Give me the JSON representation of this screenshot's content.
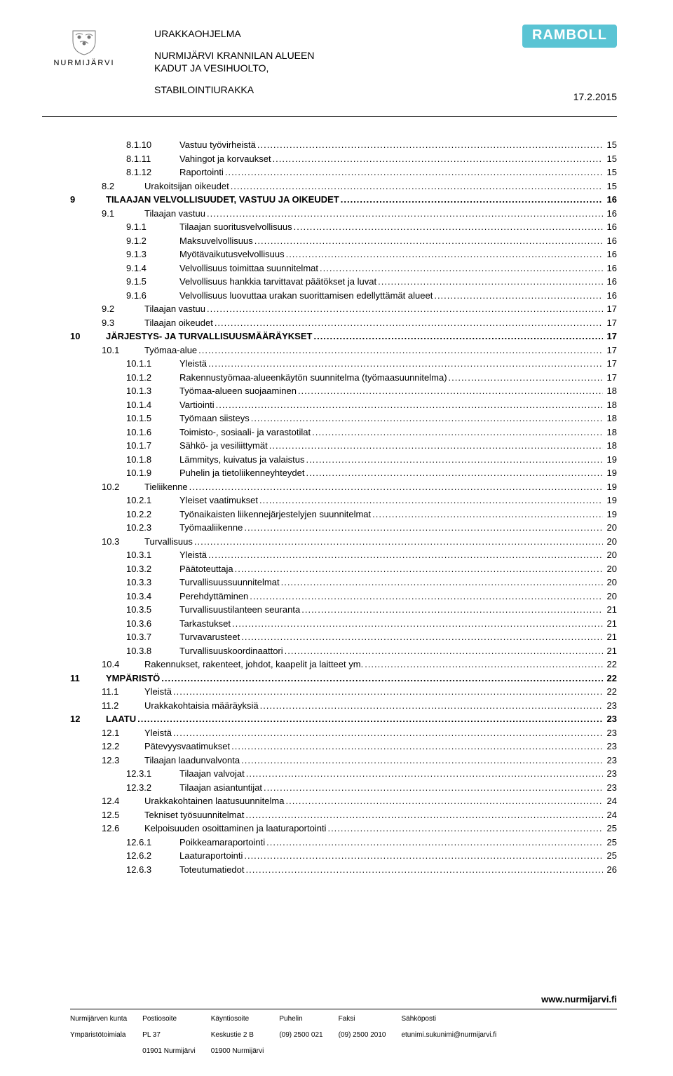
{
  "header": {
    "brand_left": "NURMIJÄRVI",
    "badge_right": "RAMBOLL",
    "title1": "URAKKAOHJELMA",
    "title2a": "NURMIJÄRVI KRANNILAN ALUEEN",
    "title2b": "KADUT JA VESIHUOLTO,",
    "title3": "STABILOINTIURAKKA",
    "date": "17.2.2015"
  },
  "toc": [
    {
      "lvl": 3,
      "num": "8.1.10",
      "title": "Vastuu työvirheistä",
      "page": "15"
    },
    {
      "lvl": 3,
      "num": "8.1.11",
      "title": "Vahingot ja korvaukset",
      "page": "15"
    },
    {
      "lvl": 3,
      "num": "8.1.12",
      "title": "Raportointi",
      "page": "15"
    },
    {
      "lvl": 2,
      "num": "8.2",
      "title": "Urakoitsijan oikeudet",
      "page": "15"
    },
    {
      "lvl": 1,
      "num": "9",
      "title": "TILAAJAN VELVOLLISUUDET, VASTUU JA OIKEUDET",
      "page": "16"
    },
    {
      "lvl": 2,
      "num": "9.1",
      "title": "Tilaajan vastuu",
      "page": "16"
    },
    {
      "lvl": 3,
      "num": "9.1.1",
      "title": "Tilaajan suoritusvelvollisuus",
      "page": "16"
    },
    {
      "lvl": 3,
      "num": "9.1.2",
      "title": "Maksuvelvollisuus",
      "page": "16"
    },
    {
      "lvl": 3,
      "num": "9.1.3",
      "title": "Myötävaikutusvelvollisuus",
      "page": "16"
    },
    {
      "lvl": 3,
      "num": "9.1.4",
      "title": "Velvollisuus toimittaa suunnitelmat",
      "page": "16"
    },
    {
      "lvl": 3,
      "num": "9.1.5",
      "title": "Velvollisuus hankkia tarvittavat päätökset ja luvat",
      "page": "16"
    },
    {
      "lvl": 3,
      "num": "9.1.6",
      "title": "Velvollisuus luovuttaa urakan suorittamisen edellyttämät alueet",
      "page": "16"
    },
    {
      "lvl": 2,
      "num": "9.2",
      "title": "Tilaajan vastuu",
      "page": "17"
    },
    {
      "lvl": 2,
      "num": "9.3",
      "title": "Tilaajan oikeudet",
      "page": "17"
    },
    {
      "lvl": 1,
      "num": "10",
      "title": "JÄRJESTYS- JA TURVALLISUUSMÄÄRÄYKSET",
      "page": "17"
    },
    {
      "lvl": 2,
      "num": "10.1",
      "title": "Työmaa-alue",
      "page": "17"
    },
    {
      "lvl": 3,
      "num": "10.1.1",
      "title": "Yleistä",
      "page": "17"
    },
    {
      "lvl": 3,
      "num": "10.1.2",
      "title": "Rakennustyömaa-alueenkäytön suunnitelma (työmaasuunnitelma)",
      "page": "17"
    },
    {
      "lvl": 3,
      "num": "10.1.3",
      "title": "Työmaa-alueen suojaaminen",
      "page": "18"
    },
    {
      "lvl": 3,
      "num": "10.1.4",
      "title": "Vartiointi",
      "page": "18"
    },
    {
      "lvl": 3,
      "num": "10.1.5",
      "title": "Työmaan siisteys",
      "page": "18"
    },
    {
      "lvl": 3,
      "num": "10.1.6",
      "title": "Toimisto-, sosiaali- ja varastotilat",
      "page": "18"
    },
    {
      "lvl": 3,
      "num": "10.1.7",
      "title": "Sähkö- ja vesiliittymät",
      "page": "18"
    },
    {
      "lvl": 3,
      "num": "10.1.8",
      "title": "Lämmitys, kuivatus ja valaistus",
      "page": "19"
    },
    {
      "lvl": 3,
      "num": "10.1.9",
      "title": "Puhelin ja tietoliikenneyhteydet",
      "page": "19"
    },
    {
      "lvl": 2,
      "num": "10.2",
      "title": "Tieliikenne",
      "page": "19"
    },
    {
      "lvl": 3,
      "num": "10.2.1",
      "title": "Yleiset vaatimukset",
      "page": "19"
    },
    {
      "lvl": 3,
      "num": "10.2.2",
      "title": "Työnaikaisten liikennejärjestelyjen suunnitelmat",
      "page": "19"
    },
    {
      "lvl": 3,
      "num": "10.2.3",
      "title": "Työmaaliikenne",
      "page": "20"
    },
    {
      "lvl": 2,
      "num": "10.3",
      "title": "Turvallisuus",
      "page": "20"
    },
    {
      "lvl": 3,
      "num": "10.3.1",
      "title": "Yleistä",
      "page": "20"
    },
    {
      "lvl": 3,
      "num": "10.3.2",
      "title": "Päätoteuttaja",
      "page": "20"
    },
    {
      "lvl": 3,
      "num": "10.3.3",
      "title": "Turvallisuussuunnitelmat",
      "page": "20"
    },
    {
      "lvl": 3,
      "num": "10.3.4",
      "title": "Perehdyttäminen",
      "page": "20"
    },
    {
      "lvl": 3,
      "num": "10.3.5",
      "title": "Turvallisuustilanteen seuranta",
      "page": "21"
    },
    {
      "lvl": 3,
      "num": "10.3.6",
      "title": "Tarkastukset",
      "page": "21"
    },
    {
      "lvl": 3,
      "num": "10.3.7",
      "title": "Turvavarusteet",
      "page": "21"
    },
    {
      "lvl": 3,
      "num": "10.3.8",
      "title": "Turvallisuuskoordinaattori",
      "page": "21"
    },
    {
      "lvl": 2,
      "num": "10.4",
      "title": "Rakennukset, rakenteet, johdot, kaapelit ja laitteet ym.",
      "page": "22"
    },
    {
      "lvl": 1,
      "num": "11",
      "title": "YMPÄRISTÖ",
      "page": "22"
    },
    {
      "lvl": 2,
      "num": "11.1",
      "title": "Yleistä",
      "page": "22"
    },
    {
      "lvl": 2,
      "num": "11.2",
      "title": "Urakkakohtaisia määräyksiä",
      "page": "23"
    },
    {
      "lvl": 1,
      "num": "12",
      "title": "LAATU",
      "page": "23"
    },
    {
      "lvl": 2,
      "num": "12.1",
      "title": "Yleistä",
      "page": "23"
    },
    {
      "lvl": 2,
      "num": "12.2",
      "title": "Pätevyysvaatimukset",
      "page": "23"
    },
    {
      "lvl": 2,
      "num": "12.3",
      "title": "Tilaajan laadunvalvonta",
      "page": "23"
    },
    {
      "lvl": 3,
      "num": "12.3.1",
      "title": "Tilaajan valvojat",
      "page": "23"
    },
    {
      "lvl": 3,
      "num": "12.3.2",
      "title": "Tilaajan asiantuntijat",
      "page": "23"
    },
    {
      "lvl": 2,
      "num": "12.4",
      "title": "Urakkakohtainen laatusuunnitelma",
      "page": "24"
    },
    {
      "lvl": 2,
      "num": "12.5",
      "title": "Tekniset työsuunnitelmat",
      "page": "24"
    },
    {
      "lvl": 2,
      "num": "12.6",
      "title": "Kelpoisuuden osoittaminen ja laaturaportointi",
      "page": "25"
    },
    {
      "lvl": 3,
      "num": "12.6.1",
      "title": "Poikkeamaraportointi",
      "page": "25"
    },
    {
      "lvl": 3,
      "num": "12.6.2",
      "title": "Laaturaportointi",
      "page": "25"
    },
    {
      "lvl": 3,
      "num": "12.6.3",
      "title": "Toteutumatiedot",
      "page": "26"
    }
  ],
  "footer": {
    "url": "www.nurmijarvi.fi",
    "cols": [
      {
        "h": "Nurmijärven kunta",
        "l1": "Ympäristötoimiala",
        "l2": ""
      },
      {
        "h": "Postiosoite",
        "l1": "PL 37",
        "l2": "01901 Nurmijärvi"
      },
      {
        "h": "Käyntiosoite",
        "l1": "Keskustie 2 B",
        "l2": "01900 Nurmijärvi"
      },
      {
        "h": "Puhelin",
        "l1": "(09) 2500 021",
        "l2": ""
      },
      {
        "h": "Faksi",
        "l1": "(09) 2500 2010",
        "l2": ""
      },
      {
        "h": "Sähköposti",
        "l1": "etunimi.sukunimi@nurmijarvi.fi",
        "l2": ""
      }
    ]
  }
}
